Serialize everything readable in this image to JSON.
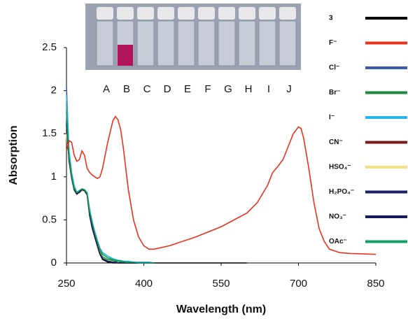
{
  "chart_data": {
    "type": "line",
    "x_label": "Wavelength (nm)",
    "y_label": "Absorption",
    "inset_labels": [
      "A",
      "B",
      "C",
      "D",
      "E",
      "F",
      "G",
      "H",
      "I",
      "J"
    ],
    "x": [
      250,
      255,
      260,
      265,
      270,
      275,
      280,
      285,
      290,
      295,
      300,
      305,
      310,
      315,
      320,
      330,
      340,
      345,
      350,
      355,
      360,
      365,
      370,
      380,
      390,
      400,
      410,
      420,
      450,
      500,
      550,
      600,
      620,
      640,
      650,
      660,
      670,
      680,
      690,
      700,
      705,
      710,
      720,
      730,
      740,
      750,
      760,
      780,
      800,
      850
    ],
    "xlim": [
      250,
      850
    ],
    "xticks": [
      250,
      400,
      550,
      700,
      850
    ],
    "ylim": [
      0,
      2.5
    ],
    "yticks": [
      0,
      0.5,
      1,
      1.5,
      2,
      2.5
    ],
    "legend": "right",
    "series": [
      {
        "name": "3",
        "color": "#000000",
        "values": [
          1.6,
          1.2,
          1.0,
          0.85,
          0.8,
          0.82,
          0.85,
          0.84,
          0.8,
          0.55,
          0.4,
          0.3,
          0.2,
          0.1,
          0.04,
          0.01,
          0,
          0,
          0,
          0,
          0,
          0,
          0,
          0,
          0,
          0,
          0,
          0,
          0,
          0,
          0,
          0,
          null,
          null,
          null,
          null,
          null,
          null,
          null,
          null,
          null,
          null,
          null,
          null,
          null,
          null,
          null,
          null,
          null,
          null
        ]
      },
      {
        "name": "F⁻",
        "color": "#e8321e",
        "values": [
          1.3,
          1.42,
          1.4,
          1.25,
          1.18,
          1.2,
          1.3,
          1.25,
          1.1,
          1.05,
          1.02,
          1.0,
          0.98,
          1.0,
          1.1,
          1.4,
          1.65,
          1.7,
          1.66,
          1.55,
          1.35,
          1.1,
          0.85,
          0.5,
          0.3,
          0.2,
          0.16,
          0.16,
          0.2,
          0.3,
          0.42,
          0.58,
          0.7,
          0.9,
          1.05,
          1.12,
          1.2,
          1.35,
          1.5,
          1.58,
          1.56,
          1.45,
          1.1,
          0.7,
          0.4,
          0.25,
          0.16,
          0.12,
          0.11,
          0.1
        ]
      },
      {
        "name": "Cl⁻",
        "color": "#3a5bb0",
        "values": [
          2.05,
          1.25,
          1.0,
          0.86,
          0.8,
          0.82,
          0.85,
          0.84,
          0.8,
          0.57,
          0.42,
          0.31,
          0.21,
          0.11,
          0.05,
          0.02,
          0.01,
          0.01,
          0,
          0,
          0,
          0,
          0,
          0,
          0,
          0,
          0,
          0,
          null,
          null,
          null,
          null,
          null,
          null,
          null,
          null,
          null,
          null,
          null,
          null,
          null,
          null,
          null,
          null,
          null,
          null,
          null,
          null,
          null,
          null
        ]
      },
      {
        "name": "Br⁻",
        "color": "#1f8a3c",
        "values": [
          1.85,
          1.22,
          1.0,
          0.86,
          0.81,
          0.83,
          0.85,
          0.84,
          0.81,
          0.58,
          0.44,
          0.33,
          0.23,
          0.13,
          0.07,
          0.04,
          0.03,
          0.02,
          0.02,
          0.01,
          0.01,
          0.01,
          0.01,
          0,
          0,
          0,
          0,
          0,
          null,
          null,
          null,
          null,
          null,
          null,
          null,
          null,
          null,
          null,
          null,
          null,
          null,
          null,
          null,
          null,
          null,
          null,
          null,
          null,
          null,
          null
        ]
      },
      {
        "name": "I⁻",
        "color": "#2ab4e6",
        "values": [
          1.95,
          1.3,
          1.05,
          0.9,
          0.82,
          0.84,
          0.86,
          0.85,
          0.82,
          0.62,
          0.48,
          0.36,
          0.26,
          0.17,
          0.12,
          0.08,
          0.05,
          0.04,
          0.03,
          0.03,
          0.02,
          0.02,
          0.02,
          0.01,
          0.01,
          0.01,
          0.01,
          0,
          null,
          null,
          null,
          null,
          null,
          null,
          null,
          null,
          null,
          null,
          null,
          null,
          null,
          null,
          null,
          null,
          null,
          null,
          null,
          null,
          null,
          null
        ]
      },
      {
        "name": "CN⁻",
        "color": "#7a1a1a",
        "values": [
          1.55,
          1.18,
          0.98,
          0.84,
          0.8,
          0.82,
          0.84,
          0.83,
          0.79,
          0.55,
          0.41,
          0.3,
          0.2,
          0.1,
          0.05,
          0.02,
          0.01,
          0.01,
          0,
          0,
          0,
          0,
          0,
          0,
          0,
          0,
          0,
          0,
          null,
          null,
          null,
          null,
          null,
          null,
          null,
          null,
          null,
          null,
          null,
          null,
          null,
          null,
          null,
          null,
          null,
          null,
          null,
          null,
          null,
          null
        ]
      },
      {
        "name": "HSO₄⁻",
        "color": "#f0e080",
        "values": [
          1.5,
          1.17,
          0.98,
          0.84,
          0.8,
          0.82,
          0.84,
          0.83,
          0.8,
          0.56,
          0.42,
          0.31,
          0.21,
          0.11,
          0.05,
          0.02,
          0.01,
          0.01,
          0,
          0,
          0,
          0,
          0,
          0,
          0,
          0,
          0,
          0,
          null,
          null,
          null,
          null,
          null,
          null,
          null,
          null,
          null,
          null,
          null,
          null,
          null,
          null,
          null,
          null,
          null,
          null,
          null,
          null,
          null,
          null
        ]
      },
      {
        "name": "H₂PO₄⁻",
        "color": "#1a1f6b",
        "values": [
          1.65,
          1.2,
          1.0,
          0.85,
          0.8,
          0.82,
          0.85,
          0.84,
          0.8,
          0.56,
          0.41,
          0.3,
          0.2,
          0.1,
          0.05,
          0.02,
          0.01,
          0.01,
          0,
          0,
          0,
          0,
          0,
          0,
          0,
          0,
          0,
          0,
          null,
          null,
          null,
          null,
          null,
          null,
          null,
          null,
          null,
          null,
          null,
          null,
          null,
          null,
          null,
          null,
          null,
          null,
          null,
          null,
          null,
          null
        ]
      },
      {
        "name": "NO₃⁻",
        "color": "#151a5a",
        "values": [
          1.62,
          1.19,
          0.99,
          0.85,
          0.8,
          0.82,
          0.85,
          0.84,
          0.8,
          0.56,
          0.41,
          0.3,
          0.2,
          0.1,
          0.05,
          0.02,
          0.01,
          0.01,
          0,
          0,
          0,
          0,
          0,
          0,
          0,
          0,
          0,
          0,
          null,
          null,
          null,
          null,
          null,
          null,
          null,
          null,
          null,
          null,
          null,
          null,
          null,
          null,
          null,
          null,
          null,
          null,
          null,
          null,
          null,
          null
        ]
      },
      {
        "name": "OAc⁻",
        "color": "#10a060",
        "values": [
          1.75,
          1.24,
          1.02,
          0.87,
          0.82,
          0.84,
          0.86,
          0.85,
          0.81,
          0.6,
          0.46,
          0.35,
          0.25,
          0.16,
          0.1,
          0.06,
          0.04,
          0.03,
          0.03,
          0.02,
          0.02,
          0.01,
          0.01,
          0.01,
          0,
          0,
          0,
          0,
          null,
          null,
          null,
          null,
          null,
          null,
          null,
          null,
          null,
          null,
          null,
          null,
          null,
          null,
          null,
          null,
          null,
          null,
          null,
          null,
          null,
          null
        ]
      }
    ]
  }
}
